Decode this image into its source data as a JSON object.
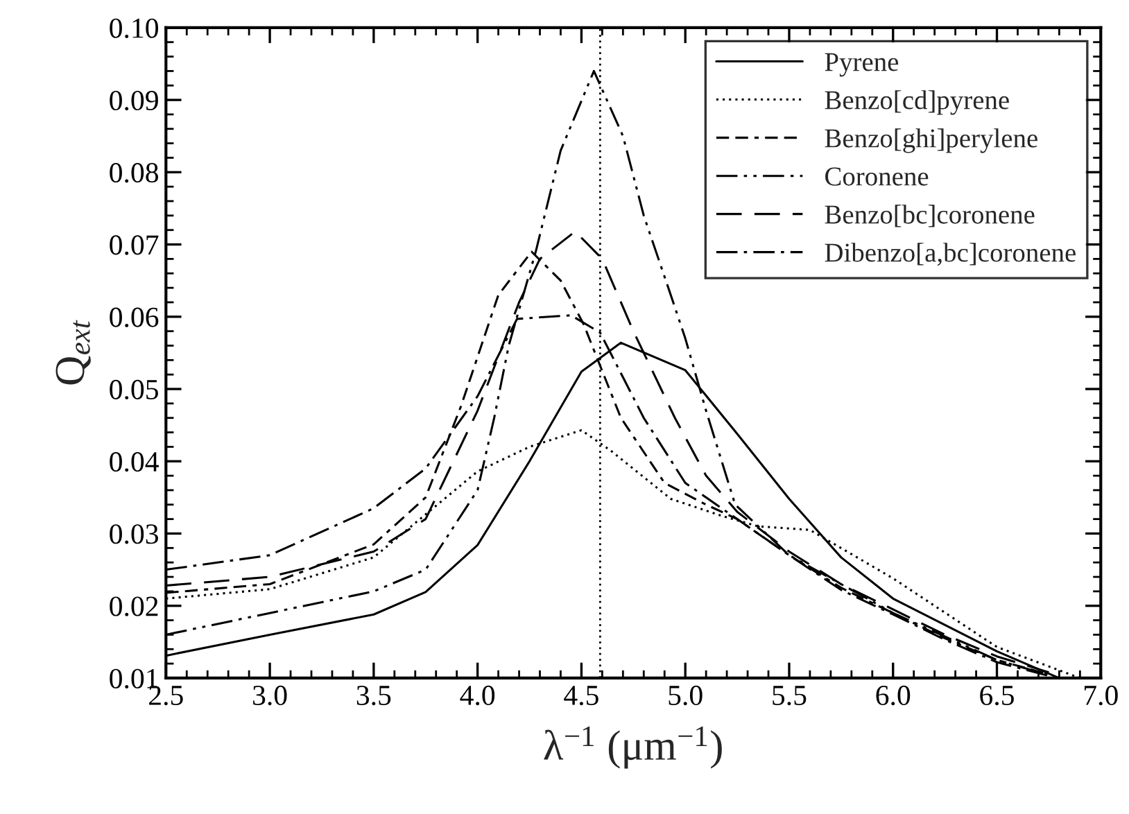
{
  "chart_data": {
    "type": "line",
    "xlabel": "λ$^{−1}$ (μm$^{−1}$)",
    "ylabel": "Q$_{ext}$",
    "xlim": [
      2.5,
      7.0
    ],
    "xticks": [
      {
        "value": 2.5,
        "label": "2.5"
      },
      {
        "value": 3.0,
        "label": "3.0"
      },
      {
        "value": 3.5,
        "label": "3.5"
      },
      {
        "value": 4.0,
        "label": "4.0"
      },
      {
        "value": 4.5,
        "label": "4.5"
      },
      {
        "value": 5.0,
        "label": "5.0"
      },
      {
        "value": 5.5,
        "label": "5.5"
      },
      {
        "value": 6.0,
        "label": "6.0"
      },
      {
        "value": 6.5,
        "label": "6.5"
      },
      {
        "value": 7.0,
        "label": "7.0"
      }
    ],
    "ylim": [
      0.01,
      0.1
    ],
    "yticks": [
      0.01,
      0.02,
      0.03,
      0.04,
      0.05,
      0.06,
      0.07,
      0.08,
      0.09,
      {
        "value": 0.1,
        "label": "0.10"
      }
    ],
    "grid": false,
    "legend": "top right",
    "marker": "none",
    "ref_lines": [
      {
        "axis": "x",
        "value": 4.59,
        "line_style": "dotted",
        "color": "#000000"
      }
    ],
    "series": [
      {
        "name": "Pyrene",
        "color": "#000000",
        "line_style": "solid",
        "x": [
          2.5,
          3.0,
          3.5,
          3.75,
          4.0,
          4.25,
          4.5,
          4.69,
          5.0,
          5.25,
          5.5,
          5.75,
          6.0,
          6.5,
          6.8
        ],
        "values": [
          0.0131,
          0.016,
          0.0188,
          0.0219,
          0.0284,
          0.04,
          0.0524,
          0.0564,
          0.0526,
          0.0438,
          0.0348,
          0.0267,
          0.021,
          0.0137,
          0.01
        ]
      },
      {
        "name": "Benzo[cd]pyrene",
        "color": "#000000",
        "line_style": "dotted",
        "x": [
          2.5,
          3.0,
          3.5,
          4.0,
          4.25,
          4.5,
          4.64,
          4.93,
          5.17,
          5.35,
          5.6,
          6.0,
          6.5,
          6.9
        ],
        "values": [
          0.021,
          0.0223,
          0.0267,
          0.0386,
          0.042,
          0.0443,
          0.0415,
          0.0348,
          0.0325,
          0.031,
          0.0305,
          0.0238,
          0.0143,
          0.01
        ]
      },
      {
        "name": "Benzo[ghi]perylene",
        "color": "#000000",
        "line_style": "dashed",
        "x": [
          2.5,
          3.0,
          3.5,
          3.75,
          3.92,
          4.1,
          4.26,
          4.4,
          4.51,
          4.69,
          4.9,
          5.1,
          5.25,
          5.5,
          5.75,
          6.0,
          6.25,
          6.5,
          6.75
        ],
        "values": [
          0.0218,
          0.023,
          0.0285,
          0.035,
          0.0476,
          0.063,
          0.069,
          0.065,
          0.059,
          0.046,
          0.037,
          0.034,
          0.032,
          0.027,
          0.0225,
          0.019,
          0.0155,
          0.0125,
          0.0105
        ]
      },
      {
        "name": "Coronene",
        "color": "#000000",
        "line_style": "dashdotdot",
        "x": [
          2.5,
          3.0,
          3.5,
          3.75,
          4.0,
          4.08,
          4.15,
          4.28,
          4.4,
          4.56,
          4.7,
          4.8,
          4.93,
          5.0,
          5.1,
          5.24,
          5.5,
          6.0,
          6.5,
          6.8
        ],
        "values": [
          0.016,
          0.019,
          0.022,
          0.025,
          0.036,
          0.046,
          0.056,
          0.069,
          0.083,
          0.094,
          0.085,
          0.074,
          0.063,
          0.057,
          0.047,
          0.034,
          0.027,
          0.019,
          0.0125,
          0.01
        ]
      },
      {
        "name": "Benzo[bc]coronene",
        "color": "#000000",
        "line_style": "longdash",
        "x": [
          2.5,
          3.0,
          3.5,
          3.75,
          4.0,
          4.2,
          4.3,
          4.47,
          4.6,
          4.75,
          4.95,
          5.1,
          5.25,
          5.5,
          5.75,
          6.0,
          6.25,
          6.5,
          6.75
        ],
        "values": [
          0.0228,
          0.024,
          0.0275,
          0.032,
          0.047,
          0.062,
          0.068,
          0.0718,
          0.068,
          0.058,
          0.046,
          0.038,
          0.033,
          0.0275,
          0.023,
          0.0195,
          0.016,
          0.013,
          0.0108
        ]
      },
      {
        "name": "Dibenzo[a,bc]coronene",
        "color": "#000000",
        "line_style": "dashdot",
        "x": [
          2.5,
          3.0,
          3.5,
          3.75,
          4.0,
          4.19,
          4.45,
          4.59,
          4.8,
          5.0,
          5.2,
          5.5,
          5.75,
          6.0,
          6.25,
          6.5,
          6.75
        ],
        "values": [
          0.025,
          0.027,
          0.0335,
          0.039,
          0.049,
          0.0597,
          0.0602,
          0.0578,
          0.046,
          0.037,
          0.033,
          0.027,
          0.0222,
          0.0188,
          0.0153,
          0.0122,
          0.0103
        ]
      }
    ]
  }
}
